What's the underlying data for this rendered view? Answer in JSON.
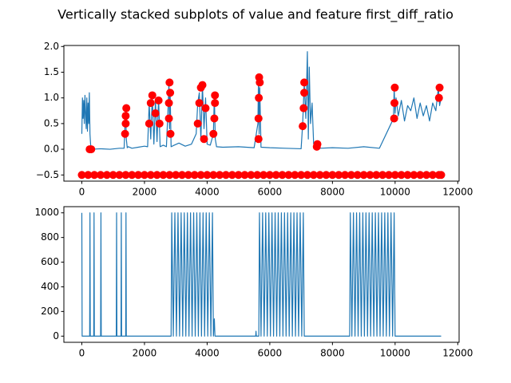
{
  "title": "Vertically stacked subplots of value and feature first_diff_ratio",
  "chart_data": [
    {
      "type": "line",
      "xlim": [
        -573,
        12043
      ],
      "ylim": [
        -0.62,
        2.02
      ],
      "xticks": [
        0,
        2000,
        4000,
        6000,
        8000,
        10000,
        12000
      ],
      "yticks": [
        {
          "value": -0.5,
          "label": "−0.5"
        },
        {
          "value": 0,
          "label": "0.0"
        },
        {
          "value": 0.5,
          "label": "0.5"
        },
        {
          "value": 1,
          "label": "1.0"
        },
        {
          "value": 1.5,
          "label": "1.5"
        },
        {
          "value": 2,
          "label": "2.0"
        }
      ],
      "series": [
        {
          "color": "#1f77b4",
          "marker": false,
          "x": [
            0,
            20,
            40,
            60,
            80,
            100,
            120,
            140,
            160,
            180,
            200,
            220,
            240,
            260,
            280,
            300,
            600,
            900,
            1200,
            1350,
            1380,
            1400,
            1420,
            1450,
            1480,
            1600,
            1800,
            2000,
            2100,
            2150,
            2200,
            2250,
            2300,
            2350,
            2400,
            2450,
            2500,
            2600,
            2700,
            2760,
            2780,
            2800,
            2820,
            2850,
            2950,
            3100,
            3300,
            3500,
            3650,
            3700,
            3750,
            3800,
            3850,
            3900,
            3950,
            4000,
            4100,
            4200,
            4230,
            4260,
            4300,
            4500,
            5000,
            5500,
            5620,
            5640,
            5660,
            5680,
            5720,
            6000,
            6500,
            7000,
            7050,
            7100,
            7150,
            7200,
            7230,
            7260,
            7300,
            7350,
            7400,
            7450,
            7500,
            7600,
            8000,
            8500,
            9000,
            9500,
            9950,
            9970,
            10000,
            10030,
            10100,
            10200,
            10300,
            10400,
            10500,
            10600,
            10700,
            10800,
            10900,
            11000,
            11100,
            11200,
            11300,
            11380,
            11420,
            11470
          ],
          "values": [
            0.3,
            1.0,
            0.6,
            0.95,
            0.5,
            1.05,
            0.7,
            0.4,
            1.0,
            0.35,
            0.9,
            0.5,
            1.1,
            0.3,
            0.1,
            0.0,
            0.01,
            0.0,
            0.02,
            0.02,
            0.5,
            0.8,
            0.2,
            0.03,
            0.05,
            0.02,
            0.04,
            0.06,
            0.05,
            0.9,
            0.2,
            1.05,
            0.1,
            0.95,
            0.15,
            0.98,
            0.05,
            0.08,
            0.05,
            0.9,
            1.3,
            0.4,
            1.1,
            0.05,
            0.08,
            0.12,
            0.06,
            0.1,
            0.3,
            0.9,
            1.1,
            0.2,
            1.25,
            0.4,
            1.0,
            0.1,
            0.08,
            0.3,
            1.05,
            0.2,
            0.05,
            0.04,
            0.05,
            0.03,
            0.5,
            1.4,
            0.3,
            1.2,
            0.04,
            0.03,
            0.02,
            0.01,
            0.5,
            1.3,
            0.6,
            1.9,
            0.2,
            1.6,
            0.5,
            0.9,
            0.1,
            0.15,
            0.0,
            0.02,
            0.03,
            0.02,
            0.05,
            0.02,
            0.6,
            1.2,
            0.7,
            1.0,
            0.65,
            0.95,
            0.55,
            0.85,
            0.75,
            1.0,
            0.6,
            0.9,
            0.65,
            0.85,
            0.55,
            0.9,
            0.75,
            1.2,
            0.85,
            1.0
          ]
        },
        {
          "color": "#ff0000",
          "marker": true,
          "x": [
            250,
            300,
            1380,
            1400,
            1400,
            1420,
            2150,
            2200,
            2250,
            2350,
            2450,
            2480,
            2780,
            2780,
            2800,
            2820,
            2830,
            3700,
            3750,
            3800,
            3850,
            3950,
            3900,
            4230,
            4250,
            4250,
            4200,
            5640,
            5640,
            5650,
            5660,
            5680,
            7050,
            7080,
            7100,
            7100,
            7500,
            7520,
            9970,
            9980,
            9990,
            11400,
            11420
          ],
          "values": [
            0.0,
            0.0,
            0.3,
            0.5,
            0.65,
            0.8,
            0.5,
            0.9,
            1.05,
            0.7,
            0.95,
            0.5,
            0.6,
            0.9,
            1.3,
            1.1,
            0.3,
            0.5,
            0.9,
            1.2,
            1.25,
            0.8,
            0.2,
            0.6,
            0.9,
            1.05,
            0.3,
            0.2,
            0.6,
            1.0,
            1.4,
            1.3,
            0.45,
            0.8,
            1.1,
            1.3,
            0.05,
            0.1,
            0.6,
            0.9,
            1.2,
            1.0,
            1.2
          ]
        },
        {
          "color": "#ff0000",
          "marker": true,
          "x": [
            0,
            200,
            400,
            600,
            800,
            1000,
            1200,
            1400,
            1600,
            1800,
            2000,
            2200,
            2400,
            2600,
            2800,
            3000,
            3200,
            3400,
            3600,
            3800,
            4000,
            4200,
            4400,
            4600,
            4800,
            5000,
            5200,
            5400,
            5600,
            5800,
            6000,
            6200,
            6400,
            6600,
            6800,
            7000,
            7200,
            7400,
            7600,
            7800,
            8000,
            8200,
            8400,
            8600,
            8800,
            9000,
            9200,
            9400,
            9600,
            9800,
            10000,
            10200,
            10400,
            10600,
            10800,
            11000,
            11200,
            11400,
            11470
          ],
          "values": [
            -0.5,
            -0.5,
            -0.5,
            -0.5,
            -0.5,
            -0.5,
            -0.5,
            -0.5,
            -0.5,
            -0.5,
            -0.5,
            -0.5,
            -0.5,
            -0.5,
            -0.5,
            -0.5,
            -0.5,
            -0.5,
            -0.5,
            -0.5,
            -0.5,
            -0.5,
            -0.5,
            -0.5,
            -0.5,
            -0.5,
            -0.5,
            -0.5,
            -0.5,
            -0.5,
            -0.5,
            -0.5,
            -0.5,
            -0.5,
            -0.5,
            -0.5,
            -0.5,
            -0.5,
            -0.5,
            -0.5,
            -0.5,
            -0.5,
            -0.5,
            -0.5,
            -0.5,
            -0.5,
            -0.5,
            -0.5,
            -0.5,
            -0.5,
            -0.5,
            -0.5,
            -0.5,
            -0.5,
            -0.5,
            -0.5,
            -0.5,
            -0.5,
            -0.5
          ]
        }
      ]
    },
    {
      "type": "line",
      "xlim": [
        -573,
        12043
      ],
      "ylim": [
        -50,
        1050
      ],
      "xticks": [
        0,
        2000,
        4000,
        6000,
        8000,
        10000,
        12000
      ],
      "yticks": [
        0,
        200,
        400,
        600,
        800,
        1000
      ],
      "series": [
        {
          "color": "#1f77b4",
          "marker": false,
          "x": [
            0,
            10,
            250,
            260,
            270,
            380,
            390,
            400,
            600,
            610,
            620,
            1100,
            1110,
            1120,
            1250,
            1260,
            1270,
            1400,
            1410,
            1420,
            2850,
            2870,
            2920,
            2970,
            3020,
            3070,
            3120,
            3170,
            3220,
            3270,
            3320,
            3370,
            3420,
            3470,
            3520,
            3570,
            3620,
            3670,
            3720,
            3770,
            3820,
            3870,
            3920,
            3970,
            4020,
            4070,
            4120,
            4170,
            4200,
            4230,
            4250,
            5550,
            5560,
            5570,
            5650,
            5670,
            5720,
            5770,
            5820,
            5870,
            5920,
            5970,
            6020,
            6070,
            6120,
            6170,
            6220,
            6270,
            6320,
            6370,
            6420,
            6470,
            6520,
            6570,
            6620,
            6670,
            6720,
            6770,
            6820,
            6870,
            6920,
            6970,
            7020,
            7070,
            7100,
            8550,
            8570,
            8620,
            8670,
            8720,
            8770,
            8820,
            8870,
            8920,
            8970,
            9020,
            9070,
            9120,
            9170,
            9220,
            9270,
            9320,
            9370,
            9420,
            9470,
            9520,
            9570,
            9620,
            9670,
            9720,
            9770,
            9820,
            9870,
            9920,
            9970,
            10000,
            11470
          ],
          "values": [
            1000,
            0,
            0,
            1000,
            0,
            0,
            1000,
            0,
            0,
            1000,
            0,
            0,
            1000,
            0,
            0,
            1000,
            0,
            0,
            1000,
            0,
            0,
            1000,
            0,
            1000,
            0,
            1000,
            0,
            1000,
            0,
            1000,
            0,
            1000,
            0,
            1000,
            0,
            1000,
            0,
            1000,
            0,
            1000,
            0,
            1000,
            0,
            1000,
            0,
            1000,
            0,
            1000,
            0,
            140,
            0,
            0,
            40,
            0,
            0,
            1000,
            0,
            1000,
            0,
            1000,
            0,
            1000,
            0,
            1000,
            0,
            1000,
            0,
            1000,
            0,
            1000,
            0,
            1000,
            0,
            1000,
            0,
            1000,
            0,
            1000,
            0,
            1000,
            0,
            1000,
            0,
            1000,
            0,
            0,
            1000,
            0,
            1000,
            0,
            1000,
            0,
            1000,
            0,
            1000,
            0,
            1000,
            0,
            1000,
            0,
            1000,
            0,
            1000,
            0,
            1000,
            0,
            1000,
            0,
            1000,
            0,
            1000,
            0,
            1000,
            0,
            1000,
            0,
            0
          ]
        }
      ]
    }
  ]
}
